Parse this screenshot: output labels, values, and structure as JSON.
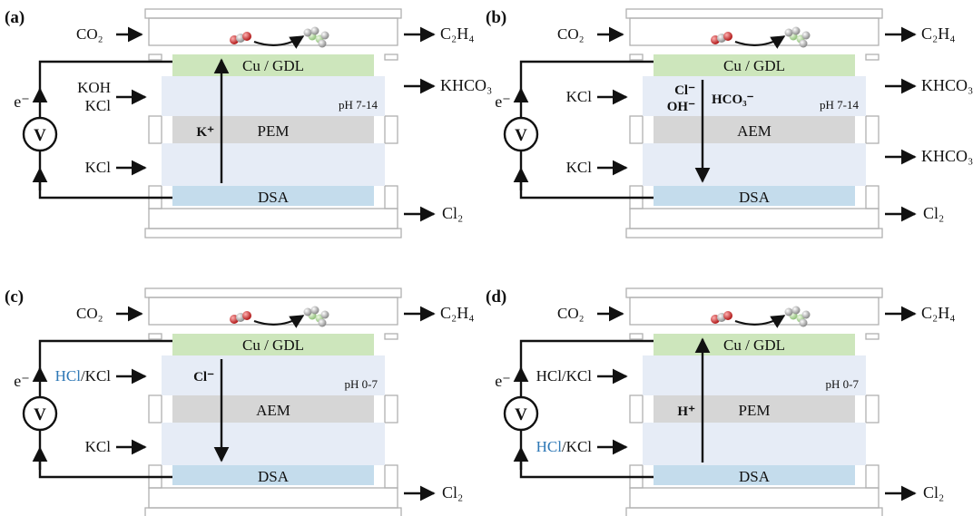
{
  "colors": {
    "red": "#c0202e",
    "blue": "#2e78b6",
    "black": "#111111",
    "cathode": "#cde6bc",
    "anode": "#c4dcec",
    "membrane": "#d6d6d6",
    "electrolyte": "#e6ecf6"
  },
  "common": {
    "co2": "CO₂",
    "c2h4": "C₂H₄",
    "cl2": "Cl₂",
    "cathode_label": "Cu / GDL",
    "anode_label": "DSA",
    "electron": "e⁻",
    "voltmeter": "V"
  },
  "panels": [
    {
      "label": "(a)",
      "membrane": "PEM",
      "ph": "pH 7-14",
      "catholyte_in": [
        {
          "text": "KOH",
          "color": "black"
        },
        {
          "text": "KCl",
          "color": "black"
        }
      ],
      "anolyte_in": [
        {
          "text": "KCl",
          "color": "blue"
        }
      ],
      "catholyte_out": "KHCO₃",
      "anolyte_out": "",
      "ions": [
        {
          "text": "K⁺"
        }
      ],
      "ion_direction": "up"
    },
    {
      "label": "(b)",
      "membrane": "AEM",
      "ph": "pH 7-14",
      "catholyte_in": [
        {
          "text": "KCl",
          "color": "blue"
        }
      ],
      "anolyte_in": [
        {
          "text": "KCl",
          "color": "blue"
        }
      ],
      "catholyte_out": "KHCO₃",
      "anolyte_out": "KHCO₃",
      "ions": [
        {
          "text": "Cl⁻"
        },
        {
          "text": "OH⁻"
        },
        {
          "text": "HCO₃⁻"
        }
      ],
      "ion_direction": "down"
    },
    {
      "label": "(c)",
      "membrane": "AEM",
      "ph": "pH 0-7",
      "catholyte_in": [
        {
          "text": "HCl",
          "color": "blue"
        },
        {
          "text": "/KCl",
          "color": "black"
        }
      ],
      "anolyte_in": [
        {
          "text": "KCl",
          "color": "blue"
        }
      ],
      "catholyte_out": "",
      "anolyte_out": "",
      "ions": [
        {
          "text": "Cl⁻"
        }
      ],
      "ion_direction": "down"
    },
    {
      "label": "(d)",
      "membrane": "PEM",
      "ph": "pH 0-7",
      "catholyte_in": [
        {
          "text": "HCl/KCl",
          "color": "black"
        }
      ],
      "anolyte_in": [
        {
          "text": "HCl",
          "color": "blue"
        },
        {
          "text": "/KCl",
          "color": "black"
        }
      ],
      "catholyte_out": "",
      "anolyte_out": "",
      "ions": [
        {
          "text": "H⁺"
        }
      ],
      "ion_direction": "up"
    }
  ]
}
